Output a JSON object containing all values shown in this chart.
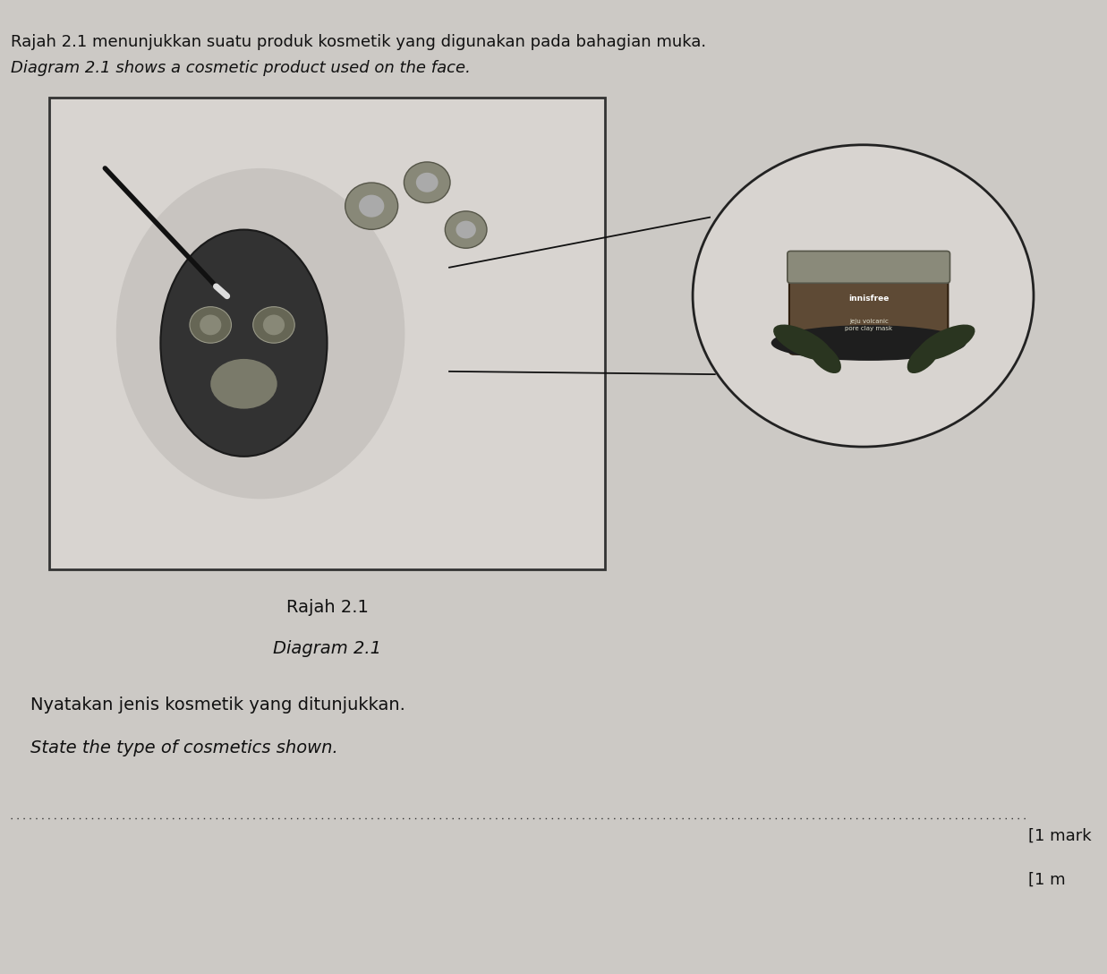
{
  "page_bg": "#ccc9c5",
  "box_bg": "#d8d4d0",
  "title_text1": "Rajah 2.1 menunjukkan suatu produk kosmetik yang digunakan pada bahagian muka.",
  "title_text2": "Diagram 2.1 shows a cosmetic product used on the face.",
  "caption1": "Rajah 2.1",
  "caption2": "Diagram 2.1",
  "question1": "Nyatakan jenis kosmetik yang ditunjukkan.",
  "question2": "State the type of cosmetics shown.",
  "mark1": "[1 mark",
  "mark2": "[1 m",
  "font_size_title": 13,
  "font_size_caption": 14,
  "font_size_question": 14,
  "font_size_marks": 13
}
